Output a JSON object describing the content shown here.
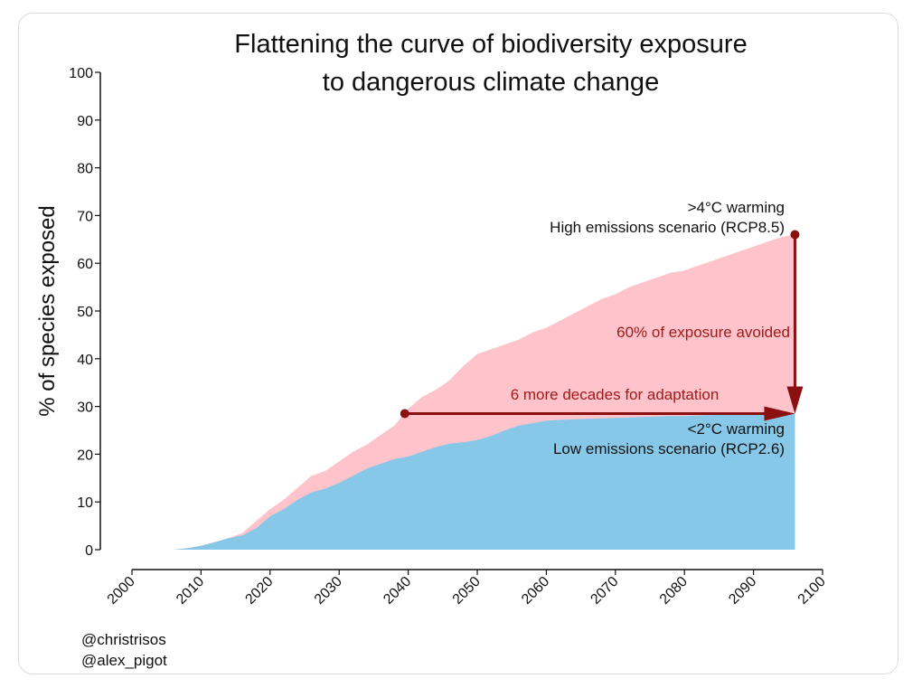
{
  "chart_data": {
    "type": "area",
    "title_lines": [
      "Flattening the curve of biodiversity exposure",
      "to dangerous climate change"
    ],
    "ylabel": "% of species exposed",
    "xlabel": "",
    "xlim": [
      2000,
      2100
    ],
    "ylim": [
      0,
      100
    ],
    "x_ticks": [
      2000,
      2010,
      2020,
      2030,
      2040,
      2050,
      2060,
      2070,
      2080,
      2090,
      2100
    ],
    "y_ticks": [
      0,
      10,
      20,
      30,
      40,
      50,
      60,
      70,
      80,
      90,
      100
    ],
    "grid": false,
    "series": [
      {
        "name": "High emissions scenario (RCP8.5)",
        "color": "#ffc4cb",
        "x": [
          2006,
          2008,
          2010,
          2012,
          2014,
          2016,
          2018,
          2020,
          2022,
          2024,
          2026,
          2028,
          2030,
          2032,
          2034,
          2036,
          2038,
          2040,
          2042,
          2044,
          2046,
          2048,
          2050,
          2052,
          2054,
          2056,
          2058,
          2060,
          2062,
          2064,
          2066,
          2068,
          2070,
          2072,
          2074,
          2076,
          2078,
          2080,
          2082,
          2084,
          2086,
          2088,
          2090,
          2092,
          2094,
          2096
        ],
        "y": [
          0,
          0.3,
          0.8,
          1.6,
          2.4,
          3.5,
          6,
          8.5,
          10.5,
          13,
          15.5,
          16.5,
          18.5,
          20.5,
          22,
          24,
          26,
          29.5,
          32,
          33.5,
          35.5,
          38.5,
          41,
          42,
          43,
          44,
          45.5,
          46.5,
          48,
          49.5,
          51,
          52.5,
          53.5,
          55,
          56,
          57,
          58,
          58.5,
          59.5,
          60.5,
          61.5,
          62.5,
          63.5,
          64.5,
          65.5,
          66
        ]
      },
      {
        "name": "Low emissions scenario (RCP2.6)",
        "color": "#87c8e8",
        "x": [
          2006,
          2008,
          2010,
          2012,
          2014,
          2016,
          2018,
          2020,
          2022,
          2024,
          2026,
          2028,
          2030,
          2032,
          2034,
          2036,
          2038,
          2040,
          2042,
          2044,
          2046,
          2048,
          2050,
          2052,
          2054,
          2056,
          2058,
          2060,
          2062,
          2064,
          2066,
          2068,
          2070,
          2072,
          2074,
          2076,
          2078,
          2080,
          2082,
          2084,
          2086,
          2088,
          2090,
          2092,
          2094,
          2096
        ],
        "y": [
          0,
          0.3,
          0.8,
          1.6,
          2.4,
          3,
          4.5,
          7,
          8.5,
          10.5,
          12,
          12.8,
          14,
          15.5,
          17,
          18,
          19,
          19.5,
          20.5,
          21.5,
          22.2,
          22.5,
          23,
          23.8,
          25,
          26,
          26.5,
          27,
          27.2,
          27.3,
          27.4,
          27.5,
          27.6,
          27.7,
          27.8,
          27.9,
          28,
          28,
          28.1,
          28.2,
          28.3,
          28.3,
          28.4,
          28.5,
          28.5,
          28.5
        ]
      }
    ],
    "annotations": {
      "high_line1": ">4°C warming",
      "high_line2": "High emissions scenario (RCP8.5)",
      "low_line1": "<2°C warming",
      "low_line2": "Low emissions scenario (RCP2.6)",
      "vertical_arrow_label": "60% of exposure avoided",
      "horizontal_arrow_label": "6 more decades for adaptation",
      "arrow_color": "#8b1111",
      "vertical_arrow": {
        "x": 2096,
        "y_from": 66,
        "y_to": 28.5
      },
      "horizontal_arrow": {
        "y": 28.5,
        "x_from": 2039.5,
        "x_to": 2096
      }
    }
  },
  "credits": [
    "@christrisos",
    "@alex_pigot"
  ]
}
